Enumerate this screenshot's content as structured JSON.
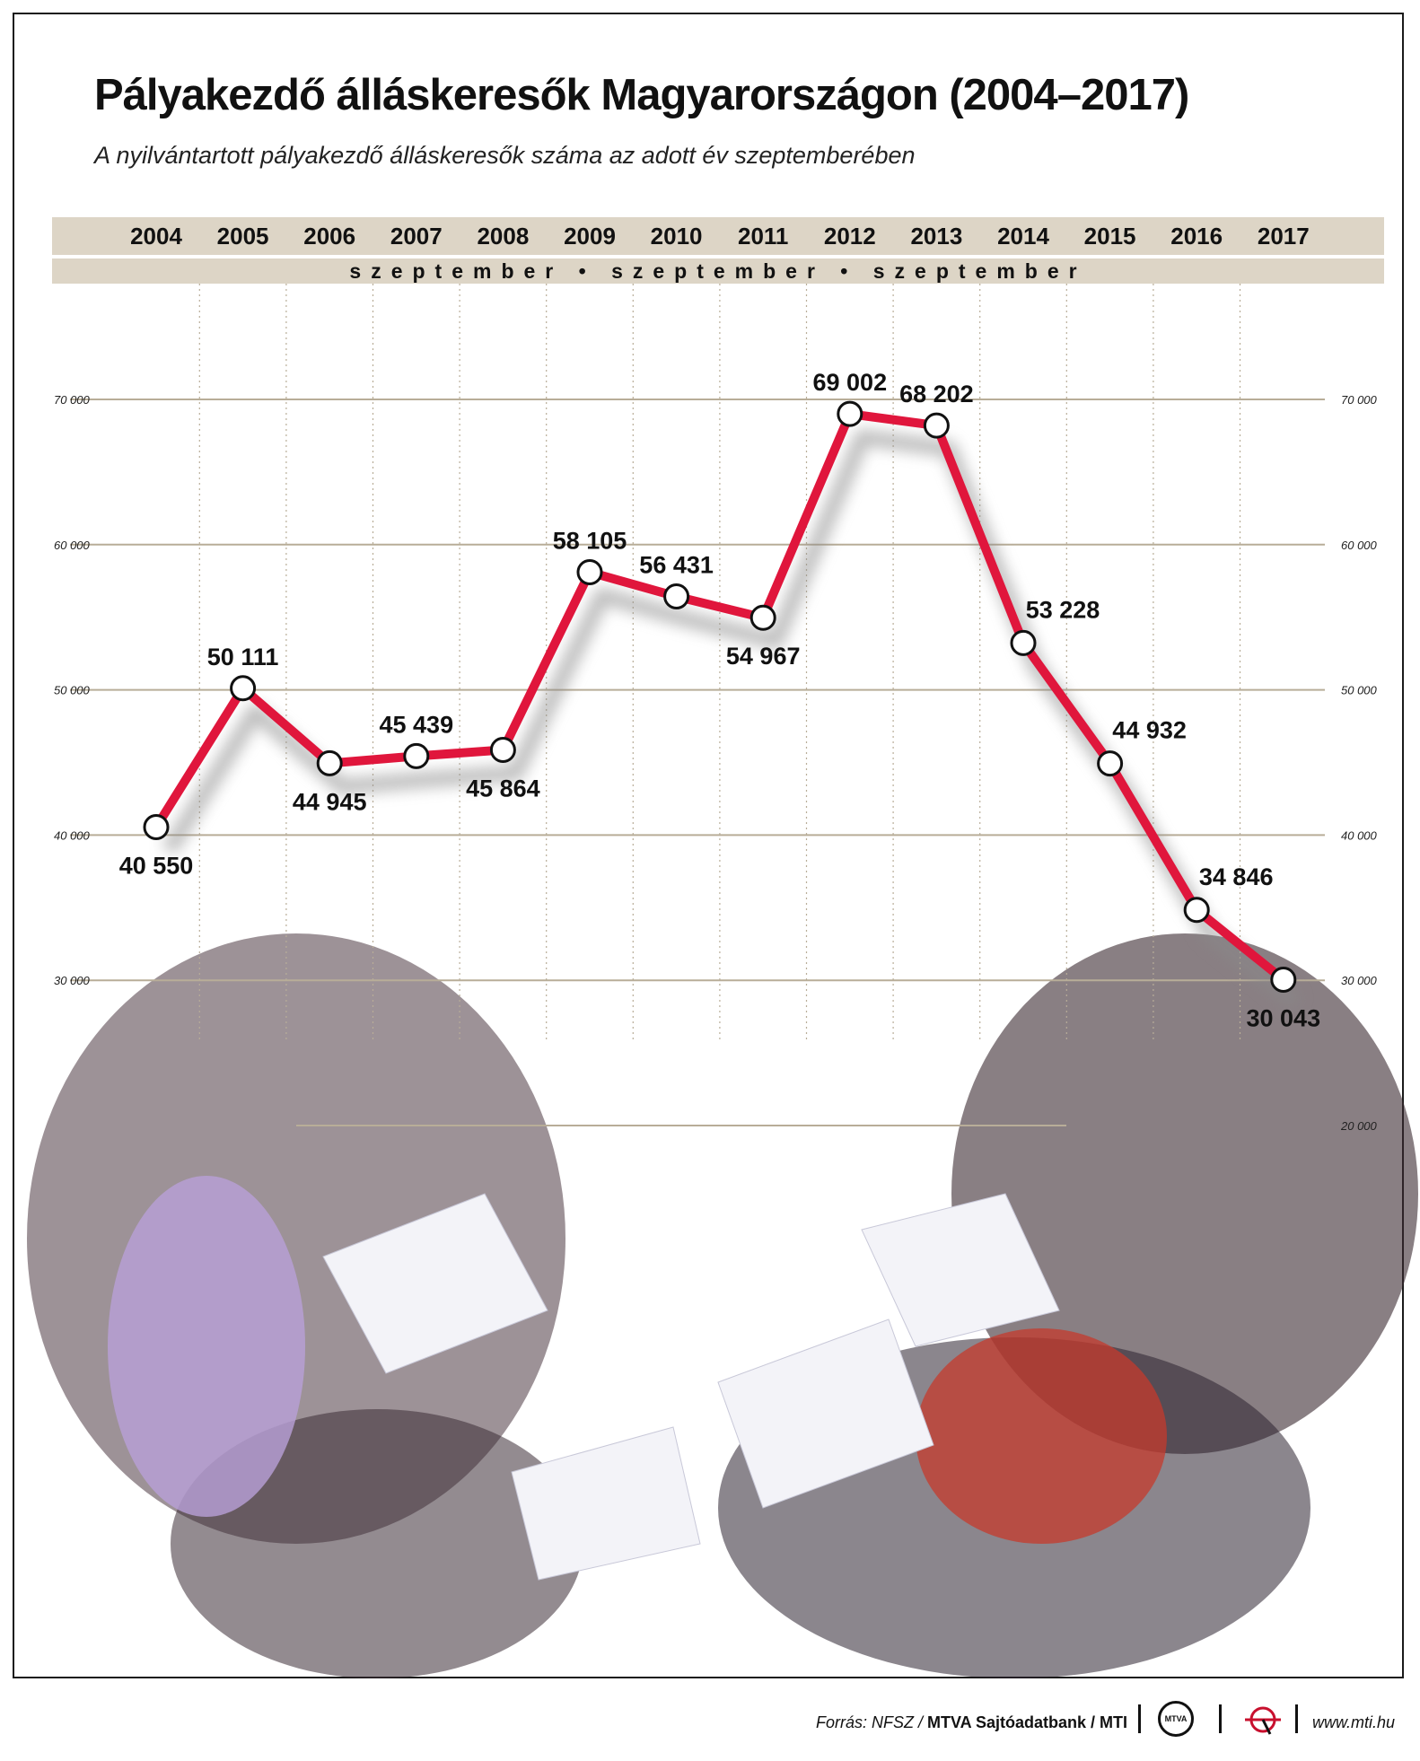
{
  "chart_data": {
    "type": "line",
    "title": "Pályakezdő álláskeresők Magyarországon (2004–2017)",
    "subtitle": "A nyilvántartott pályakezdő álláskeresők száma az adott év szeptemberében",
    "x": [
      "2004",
      "2005",
      "2006",
      "2007",
      "2008",
      "2009",
      "2010",
      "2011",
      "2012",
      "2013",
      "2014",
      "2015",
      "2016",
      "2017"
    ],
    "values": [
      40550,
      50111,
      44945,
      45439,
      45864,
      58105,
      56431,
      54967,
      69002,
      68202,
      53228,
      44932,
      34846,
      30043
    ],
    "value_labels": [
      "40 550",
      "50 111",
      "44 945",
      "45 439",
      "45 864",
      "58 105",
      "56 431",
      "54 967",
      "69 002",
      "68 202",
      "53 228",
      "44 932",
      "34 846",
      "30 043"
    ],
    "month_label": "szeptember • szeptember • szeptember",
    "ylim": [
      20000,
      70000
    ],
    "yticks": [
      70000,
      60000,
      50000,
      40000,
      30000,
      20000
    ],
    "ytick_labels_left": [
      "70 000",
      "60 000",
      "50 000",
      "40 000",
      "30 000"
    ],
    "ytick_labels_right": [
      "70 000",
      "60 000",
      "50 000",
      "40 000",
      "30 000",
      "20 000"
    ],
    "grid": true,
    "line_color": "#e0163c",
    "marker_fill": "#ffffff",
    "marker_stroke": "#111111",
    "grid_color": "#b8ad98",
    "band_color": "#ddd5c6"
  },
  "footer": {
    "source_prefix": "Forrás: NFSZ / ",
    "source_bold": "MTVA Sajtóadatbank / MTI",
    "mtva_logo": "MTVA",
    "mti_logo_icon": "mti-logo-icon",
    "site": "www.mti.hu"
  }
}
